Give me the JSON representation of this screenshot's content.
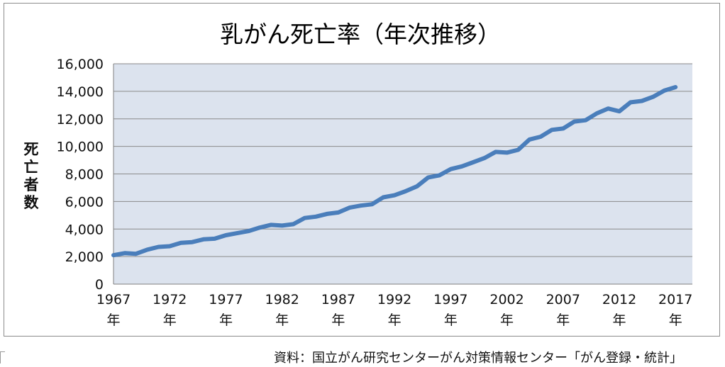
{
  "chart_data": {
    "type": "line",
    "title": "乳がん死亡率（年次推移）",
    "xlabel": "",
    "ylabel": "死亡者数",
    "ylim": [
      0,
      16000
    ],
    "yticks": [
      "0",
      "2,000",
      "4,000",
      "6,000",
      "8,000",
      "10,000",
      "12,000",
      "14,000",
      "16,000"
    ],
    "xticks": [
      "1967",
      "1972",
      "1977",
      "1982",
      "1987",
      "1992",
      "1997",
      "2002",
      "2007",
      "2012",
      "2017"
    ],
    "xtick_suffix": "年",
    "grid": true,
    "legend": "none",
    "series_color": "#4a7ebb",
    "plot_background": "#dce3ee",
    "x": [
      1967,
      1968,
      1969,
      1970,
      1971,
      1972,
      1973,
      1974,
      1975,
      1976,
      1977,
      1978,
      1979,
      1980,
      1981,
      1982,
      1983,
      1984,
      1985,
      1986,
      1987,
      1988,
      1989,
      1990,
      1991,
      1992,
      1993,
      1994,
      1995,
      1996,
      1997,
      1998,
      1999,
      2000,
      2001,
      2002,
      2003,
      2004,
      2005,
      2006,
      2007,
      2008,
      2009,
      2010,
      2011,
      2012,
      2013,
      2014,
      2015,
      2016,
      2017
    ],
    "series": [
      {
        "values": [
          2100,
          2250,
          2200,
          2500,
          2700,
          2750,
          3000,
          3050,
          3250,
          3300,
          3550,
          3700,
          3850,
          4100,
          4300,
          4250,
          4350,
          4800,
          4900,
          5100,
          5200,
          5550,
          5700,
          5800,
          6300,
          6450,
          6750,
          7100,
          7750,
          7900,
          8350,
          8550,
          8850,
          9150,
          9600,
          9550,
          9750,
          10500,
          10700,
          11200,
          11300,
          11800,
          11900,
          12400,
          12750,
          12550,
          13200,
          13300,
          13600,
          14050,
          14300
        ]
      }
    ]
  },
  "source": "資料：国立がん研究センターがん対策情報センター「がん登録・統計」"
}
